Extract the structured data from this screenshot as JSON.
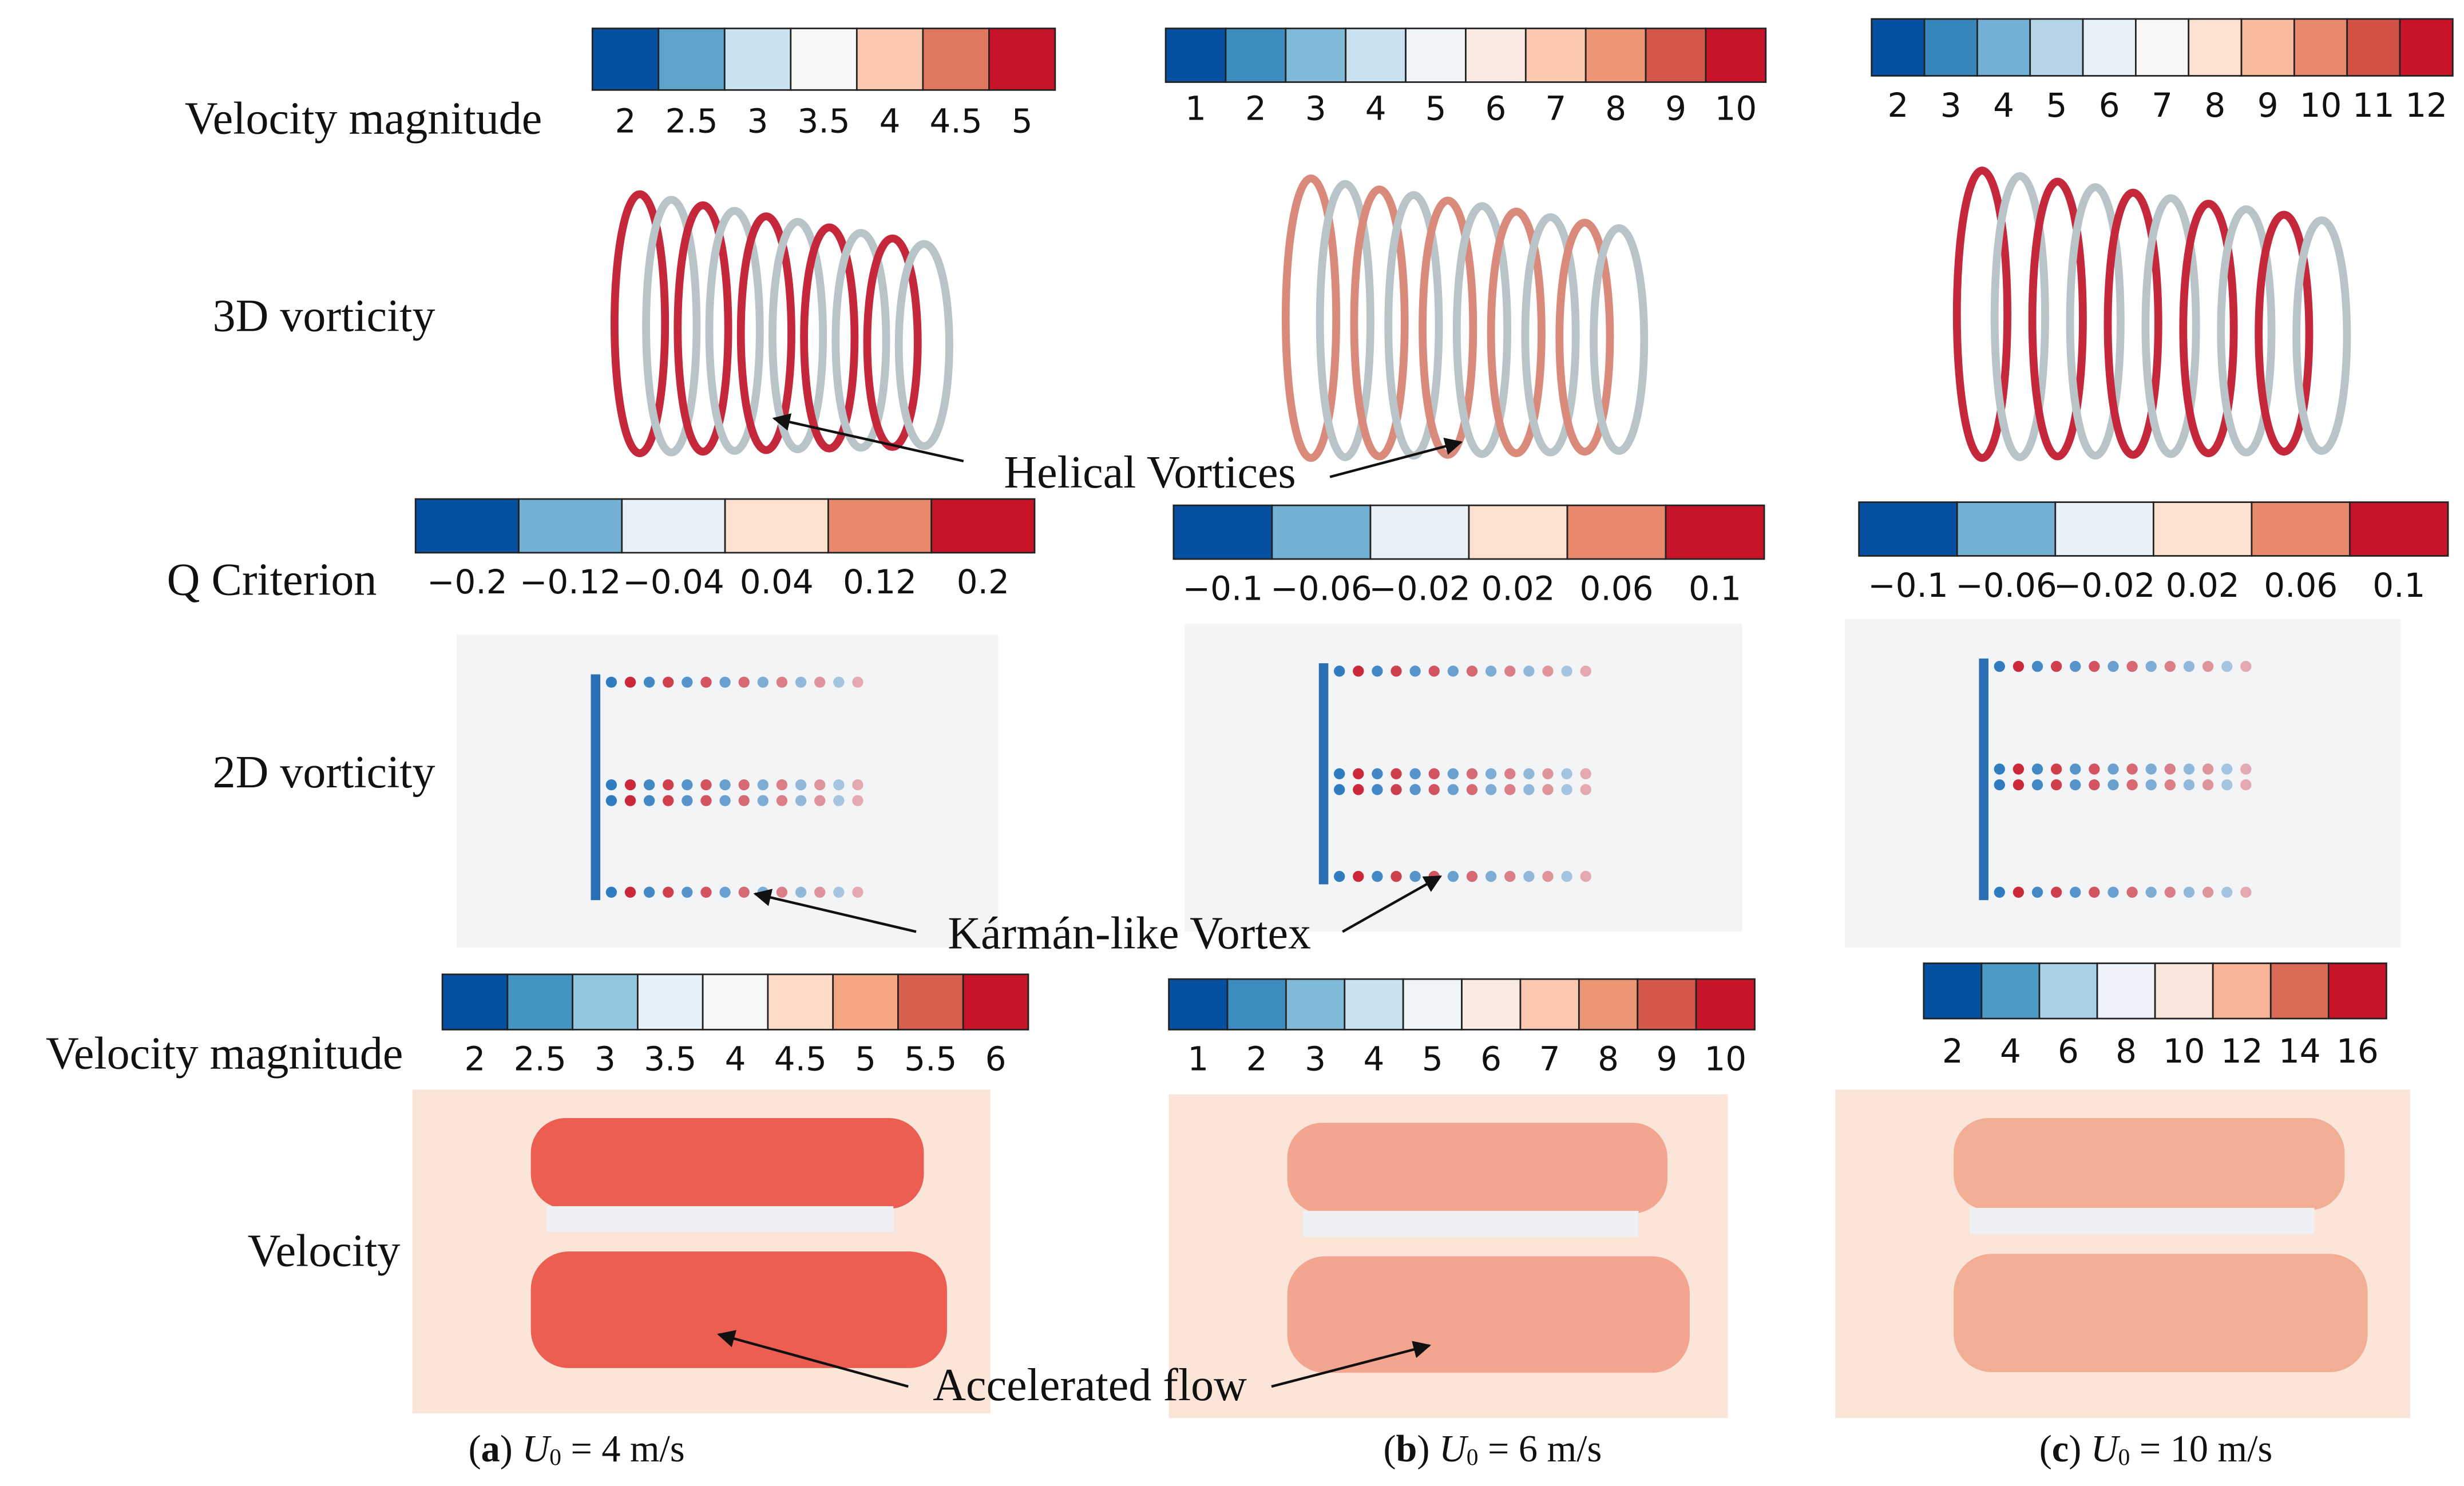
{
  "row_labels": [
    "Velocity magnitude",
    "3D vorticity",
    "Q Criterion",
    "2D vorticity",
    "Velocity magnitude",
    "Velocity"
  ],
  "colorbars": [
    {
      "ticks": [
        "2",
        "2.5",
        "3",
        "3.5",
        "4",
        "4.5",
        "5"
      ]
    },
    {
      "ticks": [
        "1",
        "2",
        "3",
        "4",
        "5",
        "6",
        "7",
        "8",
        "9",
        "10"
      ]
    },
    {
      "ticks": [
        "2",
        "3",
        "4",
        "5",
        "6",
        "7",
        "8",
        "9",
        "10",
        "11",
        "12"
      ]
    },
    {
      "ticks": [
        "−0.2",
        "−0.12",
        "−0.04",
        "0.04",
        "0.12",
        "0.2"
      ]
    },
    {
      "ticks": [
        "−0.1",
        "−0.06",
        "−0.02",
        "0.02",
        "0.06",
        "0.1"
      ]
    },
    {
      "ticks": [
        "−0.1",
        "−0.06",
        "−0.02",
        "0.02",
        "0.06",
        "0.1"
      ]
    },
    {
      "ticks": [
        "2",
        "2.5",
        "3",
        "3.5",
        "4",
        "4.5",
        "5",
        "5.5",
        "6"
      ]
    },
    {
      "ticks": [
        "1",
        "2",
        "3",
        "4",
        "5",
        "6",
        "7",
        "8",
        "9",
        "10"
      ]
    },
    {
      "ticks": [
        "2",
        "4",
        "6",
        "8",
        "10",
        "12",
        "14",
        "16"
      ]
    }
  ],
  "annotations": [
    "Helical Vortices",
    "Kármán-like Vortex",
    "Accelerated flow"
  ],
  "captions": [
    {
      "letter": "a",
      "symbol": "U",
      "subscript": "0",
      "text": " = 4 m/s"
    },
    {
      "letter": "b",
      "symbol": "U",
      "subscript": "0",
      "text": " = 6 m/s"
    },
    {
      "letter": "c",
      "symbol": "U",
      "subscript": "0",
      "text": " = 10 m/s"
    }
  ]
}
